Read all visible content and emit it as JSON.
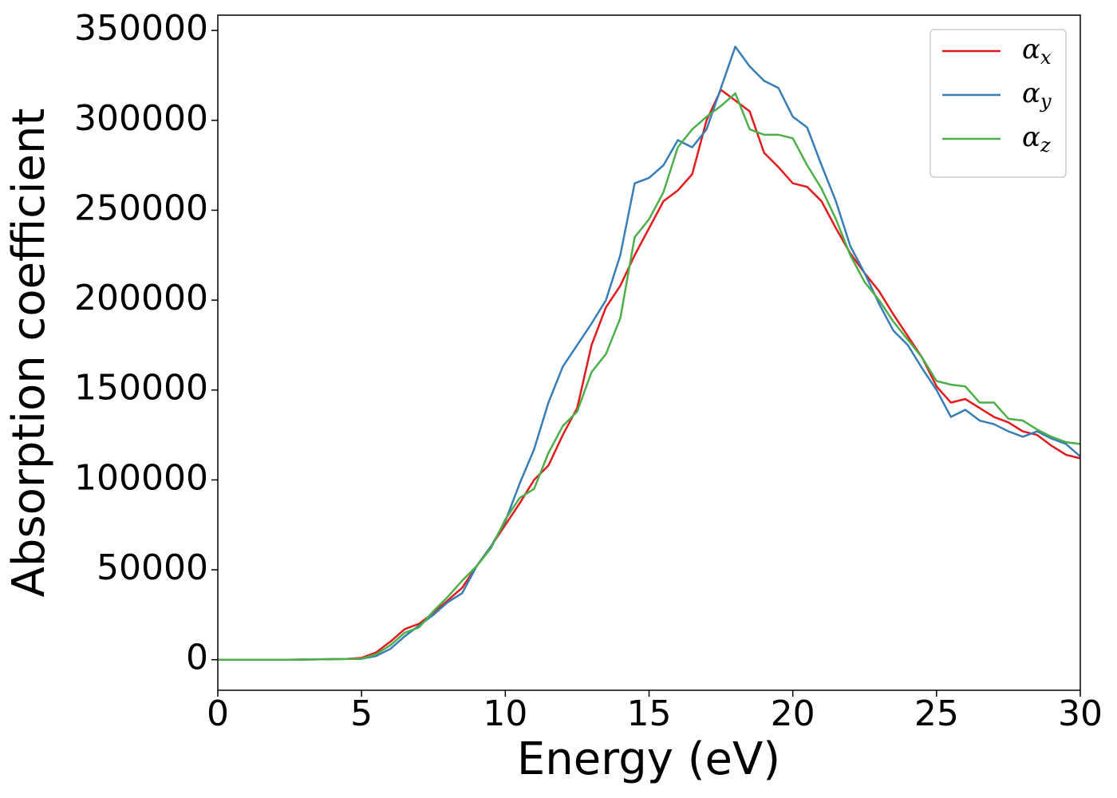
{
  "chart_data": {
    "type": "line",
    "x_label": "Energy (eV)",
    "y_label": "Absorption coefficient",
    "x": [
      0,
      0.5,
      1,
      1.5,
      2,
      2.5,
      3,
      3.5,
      4,
      4.5,
      5,
      5.5,
      6,
      6.5,
      7,
      7.5,
      8,
      8.5,
      9,
      9.5,
      10,
      10.5,
      11,
      11.5,
      12,
      12.5,
      13,
      13.5,
      14,
      14.5,
      15,
      15.5,
      16,
      16.5,
      17,
      17.5,
      18,
      18.5,
      19,
      19.5,
      20,
      20.5,
      21,
      21.5,
      22,
      22.5,
      23,
      23.5,
      24,
      24.5,
      25,
      25.5,
      26,
      26.5,
      27,
      27.5,
      28,
      28.5,
      29,
      29.5,
      30
    ],
    "series": [
      {
        "name": "αx",
        "color": "#e41a1c",
        "values": [
          0,
          0,
          0,
          0,
          0,
          0,
          100,
          200,
          300,
          500,
          1000,
          4000,
          10000,
          17000,
          20000,
          26000,
          33000,
          40000,
          52000,
          63000,
          75000,
          87000,
          100000,
          108000,
          125000,
          140000,
          175000,
          196000,
          208000,
          225000,
          240000,
          255000,
          261000,
          270000,
          300000,
          317000,
          311000,
          305000,
          282000,
          274000,
          265000,
          263000,
          255000,
          240000,
          226000,
          215000,
          205000,
          192000,
          180000,
          168000,
          152000,
          143000,
          145000,
          140000,
          135000,
          132000,
          127000,
          125000,
          119000,
          114000,
          112000
        ]
      },
      {
        "name": "αy",
        "color": "#377eb8",
        "values": [
          0,
          0,
          0,
          0,
          0,
          0,
          100,
          200,
          300,
          400,
          500,
          2000,
          6000,
          13000,
          19000,
          25000,
          32000,
          37000,
          52000,
          63000,
          77000,
          98000,
          117000,
          143000,
          163000,
          175000,
          187000,
          200000,
          225000,
          265000,
          268000,
          275000,
          289000,
          285000,
          295000,
          318000,
          341000,
          330000,
          322000,
          318000,
          302000,
          296000,
          275000,
          255000,
          230000,
          215000,
          198000,
          183000,
          175000,
          162000,
          150000,
          135000,
          139000,
          133000,
          131000,
          127000,
          124000,
          127000,
          123000,
          120000,
          113000
        ]
      },
      {
        "name": "αz",
        "color": "#4daf4a",
        "values": [
          0,
          0,
          0,
          0,
          0,
          0,
          100,
          200,
          300,
          400,
          500,
          3000,
          8000,
          15000,
          18000,
          27000,
          35000,
          44000,
          52000,
          62000,
          78000,
          90000,
          95000,
          115000,
          130000,
          138000,
          160000,
          170000,
          190000,
          235000,
          245000,
          260000,
          285000,
          295000,
          302000,
          308000,
          315000,
          295000,
          292000,
          292000,
          290000,
          275000,
          262000,
          245000,
          225000,
          210000,
          200000,
          188000,
          178000,
          168000,
          155000,
          153000,
          152000,
          143000,
          143000,
          134000,
          133000,
          128000,
          124000,
          121000,
          120000
        ]
      }
    ],
    "xlim": [
      0,
      30
    ],
    "ylim": [
      -17000,
      358500
    ],
    "xticks": [
      0,
      5,
      10,
      15,
      20,
      25,
      30
    ],
    "yticks": [
      0,
      50000,
      100000,
      150000,
      200000,
      250000,
      300000,
      350000
    ],
    "grid": false,
    "legend": "upper right"
  }
}
